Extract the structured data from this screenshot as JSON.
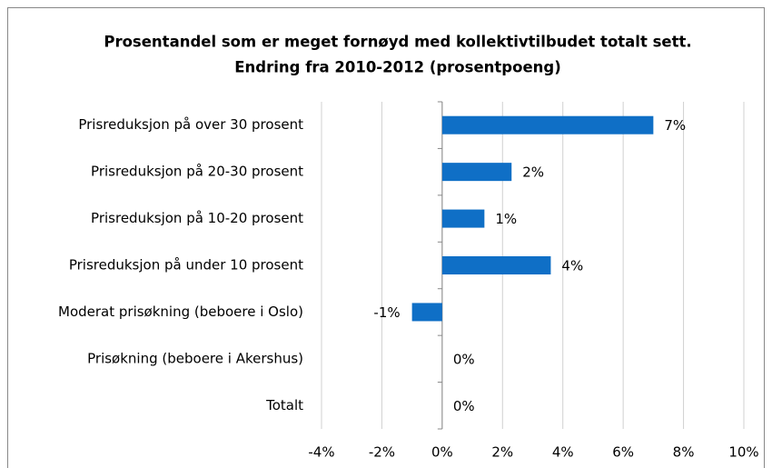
{
  "chart_data": {
    "type": "hbar",
    "title": "Prosentandel som er meget fornøyd med kollektivtilbudet totalt sett.",
    "subtitle": "Endring fra 2010-2012 (prosentpoeng)",
    "categories": [
      "Prisreduksjon på over 30 prosent",
      "Prisreduksjon på 20-30 prosent",
      "Prisreduksjon på 10-20 prosent",
      "Prisreduksjon på under 10 prosent",
      "Moderat prisøkning (beboere i Oslo)",
      "Prisøkning (beboere i Akershus)",
      "Totalt"
    ],
    "values": [
      7.0,
      2.3,
      1.4,
      3.6,
      -1.0,
      0,
      0
    ],
    "value_labels": [
      "7%",
      "2%",
      "1%",
      "4%",
      "-1%",
      "0%",
      "0%"
    ],
    "color": "#0f6fc6",
    "xlim": [
      -4,
      10
    ],
    "xticks": [
      {
        "value": -4,
        "label": "-4%"
      },
      {
        "value": -2,
        "label": "-2%"
      },
      {
        "value": 0,
        "label": "0%"
      },
      {
        "value": 2,
        "label": "2%"
      },
      {
        "value": 4,
        "label": "4%"
      },
      {
        "value": 6,
        "label": "6%"
      },
      {
        "value": 8,
        "label": "8%"
      },
      {
        "value": 10,
        "label": "10%"
      }
    ],
    "grid": true
  }
}
